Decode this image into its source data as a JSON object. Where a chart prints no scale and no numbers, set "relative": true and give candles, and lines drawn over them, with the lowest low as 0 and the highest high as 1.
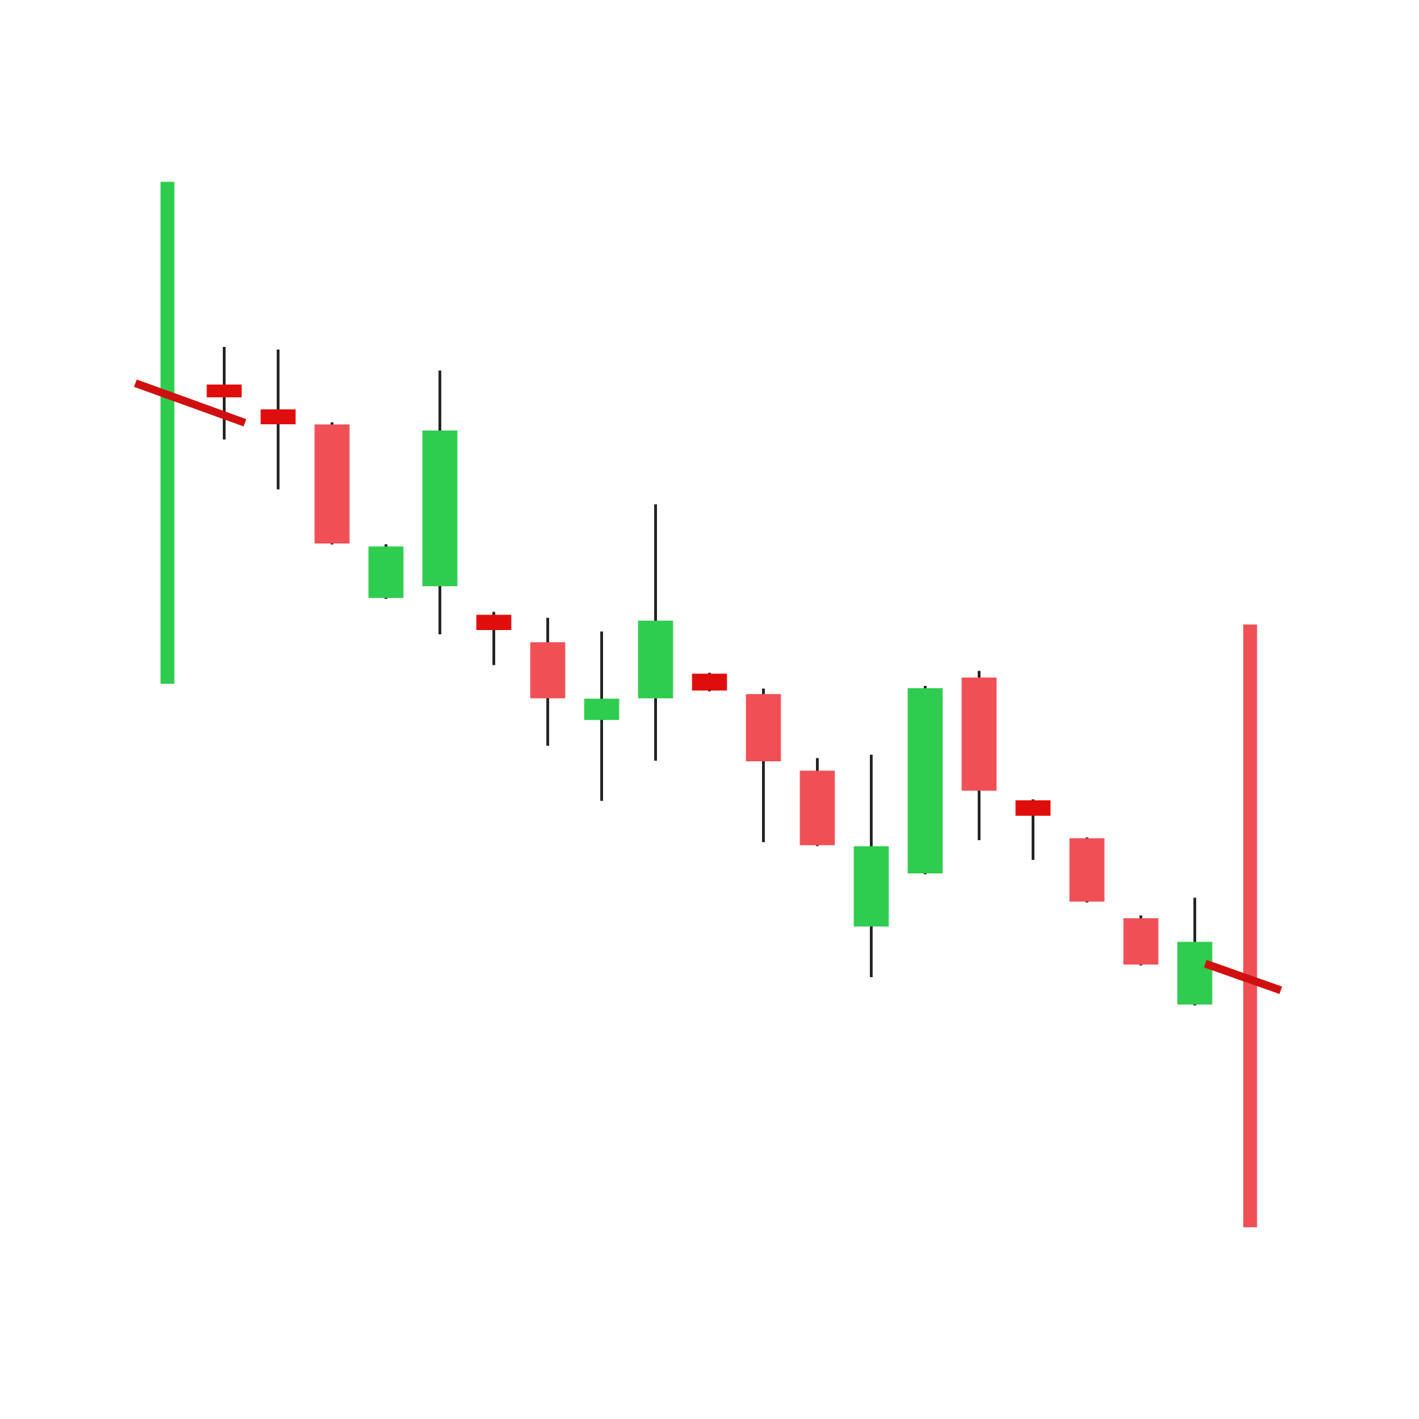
{
  "chart_data": {
    "type": "candlestick",
    "relative": true,
    "categories": [
      null,
      null,
      null,
      null,
      null,
      null,
      null,
      null,
      null,
      null,
      null,
      null,
      null,
      null,
      null,
      null,
      null,
      null,
      null
    ],
    "ohlc": [
      [
        0.944,
        1.0,
        0.863,
        0.926
      ],
      [
        0.906,
        0.996,
        0.787,
        0.885
      ],
      [
        0.883,
        0.885,
        0.703,
        0.703
      ],
      [
        0.62,
        0.699,
        0.62,
        0.697
      ],
      [
        0.638,
        0.964,
        0.566,
        0.874
      ],
      [
        0.593,
        0.596,
        0.519,
        0.571
      ],
      [
        0.551,
        0.587,
        0.396,
        0.467
      ],
      [
        0.434,
        0.566,
        0.312,
        0.465
      ],
      [
        0.467,
        0.76,
        0.373,
        0.584
      ],
      [
        0.503,
        0.503,
        0.479,
        0.479
      ],
      [
        0.472,
        0.479,
        0.249,
        0.371
      ],
      [
        0.355,
        0.373,
        0.243,
        0.243
      ],
      [
        0.119,
        0.378,
        0.043,
        0.24
      ],
      [
        0.2,
        0.483,
        0.2,
        0.481
      ],
      [
        0.497,
        0.506,
        0.252,
        0.326
      ],
      [
        0.31,
        0.31,
        0.222,
        0.288
      ],
      [
        0.252,
        0.252,
        0.157,
        0.157
      ],
      [
        0.13,
        0.133,
        0.061,
        0.061
      ],
      [
        0.0,
        0.16,
        0.0,
        0.094
      ]
    ],
    "colors": [
      "#e00d0d",
      "#e00d0d",
      "#ef4f55",
      "#2ecc4f",
      "#2ecc4f",
      "#e00d0d",
      "#ef4f55",
      "#2ecc4f",
      "#2ecc4f",
      "#e00d0d",
      "#ef4f55",
      "#ef4f55",
      "#2ecc4f",
      "#2ecc4f",
      "#ef4f55",
      "#e00d0d",
      "#ef4f55",
      "#ef4f55",
      "#2ecc4f"
    ]
  }
}
